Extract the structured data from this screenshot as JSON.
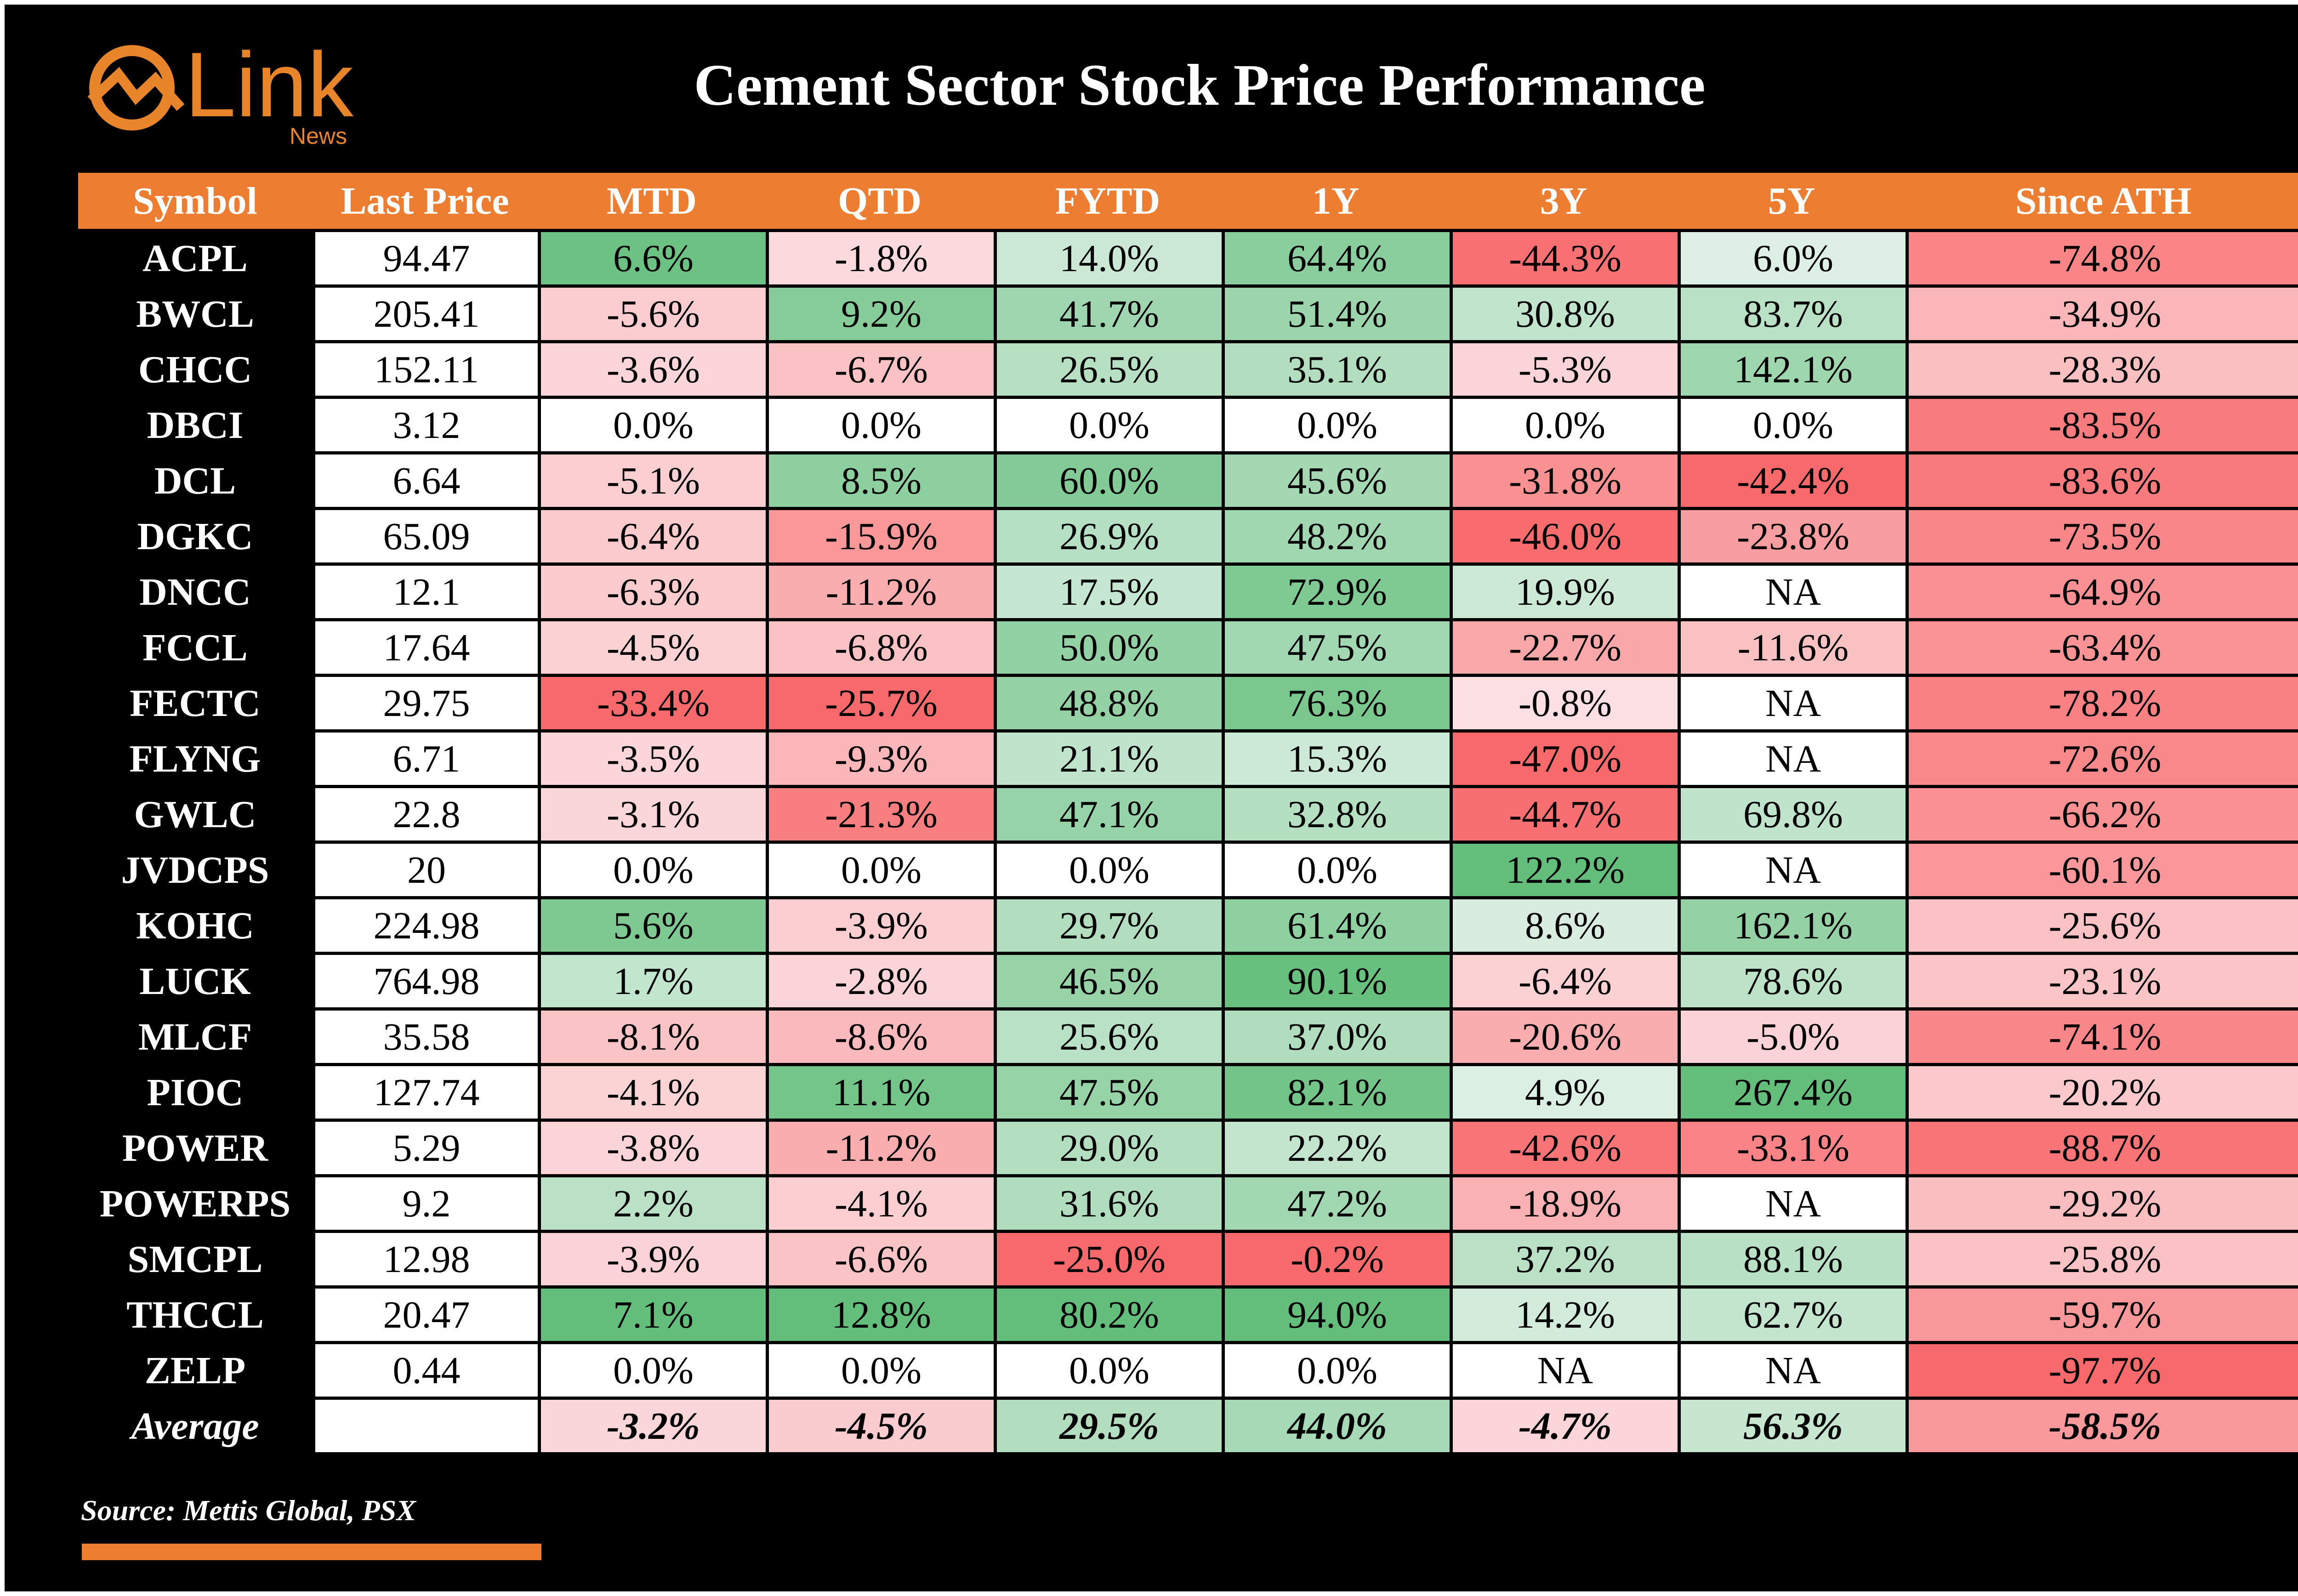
{
  "logo": {
    "word": "Link",
    "sub": "News",
    "color": "#e8842a"
  },
  "chart_data": {
    "type": "table",
    "title": "Cement Sector Stock Price Performance",
    "columns": [
      "Symbol",
      "Last Price",
      "MTD",
      "QTD",
      "FYTD",
      "1Y",
      "3Y",
      "5Y",
      "Since ATH"
    ],
    "rows": [
      [
        "ACPL",
        "94.47",
        "6.6%",
        "-1.8%",
        "14.0%",
        "64.4%",
        "-44.3%",
        "6.0%",
        "-74.8%"
      ],
      [
        "BWCL",
        "205.41",
        "-5.6%",
        "9.2%",
        "41.7%",
        "51.4%",
        "30.8%",
        "83.7%",
        "-34.9%"
      ],
      [
        "CHCC",
        "152.11",
        "-3.6%",
        "-6.7%",
        "26.5%",
        "35.1%",
        "-5.3%",
        "142.1%",
        "-28.3%"
      ],
      [
        "DBCI",
        "3.12",
        "0.0%",
        "0.0%",
        "0.0%",
        "0.0%",
        "0.0%",
        "0.0%",
        "-83.5%"
      ],
      [
        "DCL",
        "6.64",
        "-5.1%",
        "8.5%",
        "60.0%",
        "45.6%",
        "-31.8%",
        "-42.4%",
        "-83.6%"
      ],
      [
        "DGKC",
        "65.09",
        "-6.4%",
        "-15.9%",
        "26.9%",
        "48.2%",
        "-46.0%",
        "-23.8%",
        "-73.5%"
      ],
      [
        "DNCC",
        "12.1",
        "-6.3%",
        "-11.2%",
        "17.5%",
        "72.9%",
        "19.9%",
        "NA",
        "-64.9%"
      ],
      [
        "FCCL",
        "17.64",
        "-4.5%",
        "-6.8%",
        "50.0%",
        "47.5%",
        "-22.7%",
        "-11.6%",
        "-63.4%"
      ],
      [
        "FECTC",
        "29.75",
        "-33.4%",
        "-25.7%",
        "48.8%",
        "76.3%",
        "-0.8%",
        "NA",
        "-78.2%"
      ],
      [
        "FLYNG",
        "6.71",
        "-3.5%",
        "-9.3%",
        "21.1%",
        "15.3%",
        "-47.0%",
        "NA",
        "-72.6%"
      ],
      [
        "GWLC",
        "22.8",
        "-3.1%",
        "-21.3%",
        "47.1%",
        "32.8%",
        "-44.7%",
        "69.8%",
        "-66.2%"
      ],
      [
        "JVDCPS",
        "20",
        "0.0%",
        "0.0%",
        "0.0%",
        "0.0%",
        "122.2%",
        "NA",
        "-60.1%"
      ],
      [
        "KOHC",
        "224.98",
        "5.6%",
        "-3.9%",
        "29.7%",
        "61.4%",
        "8.6%",
        "162.1%",
        "-25.6%"
      ],
      [
        "LUCK",
        "764.98",
        "1.7%",
        "-2.8%",
        "46.5%",
        "90.1%",
        "-6.4%",
        "78.6%",
        "-23.1%"
      ],
      [
        "MLCF",
        "35.58",
        "-8.1%",
        "-8.6%",
        "25.6%",
        "37.0%",
        "-20.6%",
        "-5.0%",
        "-74.1%"
      ],
      [
        "PIOC",
        "127.74",
        "-4.1%",
        "11.1%",
        "47.5%",
        "82.1%",
        "4.9%",
        "267.4%",
        "-20.2%"
      ],
      [
        "POWER",
        "5.29",
        "-3.8%",
        "-11.2%",
        "29.0%",
        "22.2%",
        "-42.6%",
        "-33.1%",
        "-88.7%"
      ],
      [
        "POWERPS",
        "9.2",
        "2.2%",
        "-4.1%",
        "31.6%",
        "47.2%",
        "-18.9%",
        "NA",
        "-29.2%"
      ],
      [
        "SMCPL",
        "12.98",
        "-3.9%",
        "-6.6%",
        "-25.0%",
        "-0.2%",
        "37.2%",
        "88.1%",
        "-25.8%"
      ],
      [
        "THCCL",
        "20.47",
        "7.1%",
        "12.8%",
        "80.2%",
        "94.0%",
        "14.2%",
        "62.7%",
        "-59.7%"
      ],
      [
        "ZELP",
        "0.44",
        "0.0%",
        "0.0%",
        "0.0%",
        "0.0%",
        "NA",
        "NA",
        "-97.7%"
      ]
    ],
    "average": [
      "Average",
      "",
      "-3.2%",
      "-4.5%",
      "29.5%",
      "44.0%",
      "-4.7%",
      "56.3%",
      "-58.5%"
    ],
    "colors": {
      "positive": "#63be7b",
      "negative": "#f8696b",
      "neutral": "#fcfcff",
      "header": "#ed7d31"
    }
  },
  "source": "Source: Mettis Global, PSX"
}
